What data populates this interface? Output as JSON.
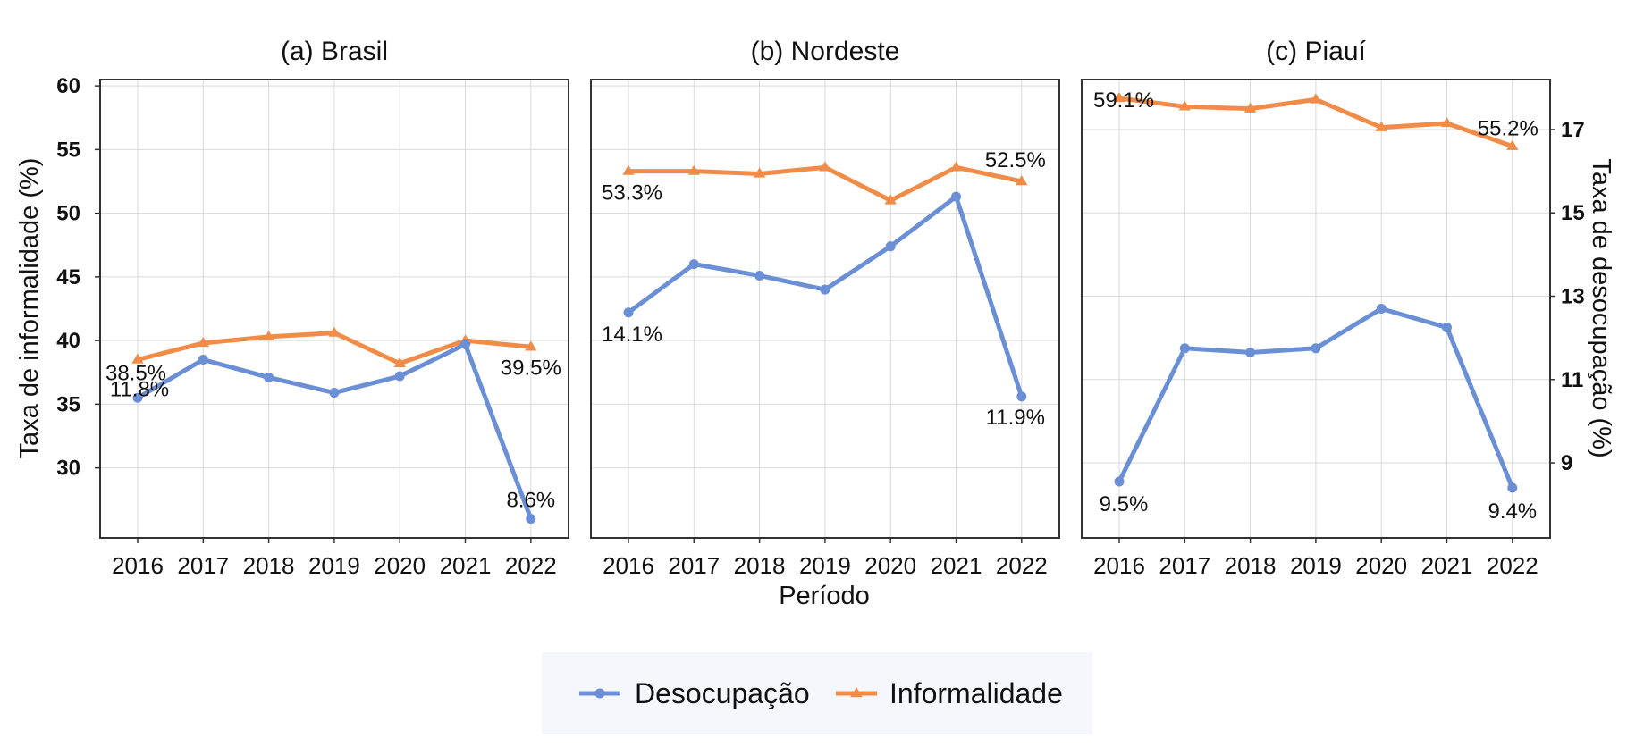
{
  "chart_data": {
    "type": "line",
    "x_label": "Período",
    "y_label_left": "Taxa de informalidade (%)",
    "y_label_right": "Taxa de desocupação (%)",
    "left_ticks": [
      30,
      35,
      40,
      45,
      50,
      55,
      60
    ],
    "right_ticks": [
      9,
      11,
      13,
      15,
      17
    ],
    "ylim_left": [
      24.5,
      60.5
    ],
    "ylim_right": [
      7.2,
      18.2
    ],
    "legend_position": "bottom",
    "grid": true,
    "series_colors": {
      "Desocupação": "#6a8fd4",
      "Informalidade": "#f08c47"
    },
    "legend": [
      {
        "name": "Desocupação",
        "marker": "circle"
      },
      {
        "name": "Informalidade",
        "marker": "triangle"
      }
    ],
    "panels": [
      {
        "title": "(a) Brasil",
        "x": [
          "2016",
          "2017",
          "2018",
          "2019",
          "2020",
          "2021",
          "2022"
        ],
        "series": [
          {
            "name": "Informalidade",
            "axis": "left",
            "values": [
              38.5,
              39.8,
              40.3,
              40.6,
              38.2,
              40.0,
              39.5
            ]
          },
          {
            "name": "Desocupação",
            "axis": "left",
            "values": [
              35.5,
              38.5,
              37.1,
              35.9,
              37.2,
              39.7,
              26.0
            ]
          }
        ],
        "labels": [
          {
            "text": "38.5%",
            "series": "Informalidade",
            "index": 0
          },
          {
            "text": "39.5%",
            "series": "Informalidade",
            "index": 6
          },
          {
            "text": "11.8%",
            "series": "Desocupação",
            "index": 0
          },
          {
            "text": "8.6%",
            "series": "Desocupação",
            "index": 6
          }
        ]
      },
      {
        "title": "(b) Nordeste",
        "x": [
          "2016",
          "2017",
          "2018",
          "2019",
          "2020",
          "2021",
          "2022"
        ],
        "series": [
          {
            "name": "Informalidade",
            "axis": "left",
            "values": [
              53.3,
              53.3,
              53.1,
              53.6,
              51.0,
              53.6,
              52.5
            ]
          },
          {
            "name": "Desocupação",
            "axis": "left",
            "values": [
              42.2,
              46.0,
              45.1,
              44.0,
              47.4,
              51.3,
              35.6
            ]
          }
        ],
        "labels": [
          {
            "text": "53.3%",
            "series": "Informalidade",
            "index": 0
          },
          {
            "text": "52.5%",
            "series": "Informalidade",
            "index": 6
          },
          {
            "text": "14.1%",
            "series": "Desocupação",
            "index": 0
          },
          {
            "text": "11.9%",
            "series": "Desocupação",
            "index": 6
          }
        ]
      },
      {
        "title": "(c) Piauí",
        "x": [
          "2016",
          "2017",
          "2018",
          "2019",
          "2020",
          "2021",
          "2022"
        ],
        "series": [
          {
            "name": "Informalidade",
            "axis": "right",
            "values": [
              17.75,
              17.55,
              17.5,
              17.72,
              17.05,
              17.15,
              16.6
            ]
          },
          {
            "name": "Desocupação",
            "axis": "right",
            "values": [
              8.55,
              11.75,
              11.65,
              11.75,
              12.7,
              12.25,
              8.4
            ]
          }
        ],
        "labels": [
          {
            "text": "59.1%",
            "series": "Informalidade",
            "index": 0
          },
          {
            "text": "55.2%",
            "series": "Informalidade",
            "index": 6
          },
          {
            "text": "9.5%",
            "series": "Desocupação",
            "index": 0
          },
          {
            "text": "9.4%",
            "series": "Desocupação",
            "index": 6
          }
        ]
      }
    ]
  }
}
